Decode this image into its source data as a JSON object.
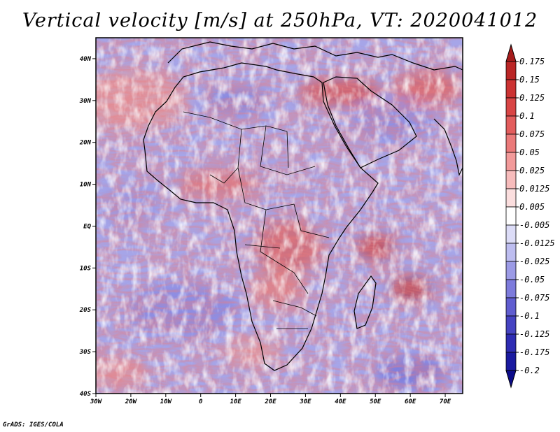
{
  "title": "Vertical velocity [m/s] at 250hPa, VT: 2020041012",
  "credit": "GrADS: IGES/COLA",
  "colors": {
    "positive": "#d23a3a",
    "negative": "#4a48c8",
    "background": "#ffffff",
    "coastline": "#000000"
  },
  "chart_data": {
    "type": "heatmap",
    "variable": "Vertical velocity",
    "units": "m/s",
    "level": "250hPa",
    "valid_time": "2020041012",
    "region": "Africa",
    "lon_range": [
      -30,
      75
    ],
    "lat_range": [
      -40,
      45
    ],
    "x_ticks": [
      "30W",
      "20W",
      "10W",
      "0",
      "10E",
      "20E",
      "30E",
      "40E",
      "50E",
      "60E",
      "70E"
    ],
    "x_tick_values": [
      -30,
      -20,
      -10,
      0,
      10,
      20,
      30,
      40,
      50,
      60,
      70
    ],
    "y_ticks": [
      "40N",
      "30N",
      "20N",
      "10N",
      "EQ",
      "10S",
      "20S",
      "30S",
      "40S"
    ],
    "y_tick_values": [
      40,
      30,
      20,
      10,
      0,
      -10,
      -20,
      -30,
      -40
    ],
    "colorbar": {
      "labels": [
        "0.175",
        "0.15",
        "0.125",
        "0.1",
        "0.075",
        "0.05",
        "0.025",
        "0.0125",
        "0.005",
        "-0.005",
        "-0.0125",
        "-0.025",
        "-0.05",
        "-0.075",
        "-0.1",
        "-0.125",
        "-0.175",
        "-0.2"
      ],
      "colors": [
        "#a51c1c",
        "#bb2626",
        "#cc3333",
        "#d94545",
        "#e35d5d",
        "#eb7a7a",
        "#f29a9a",
        "#f7bcbc",
        "#fbdede",
        "#ffffff",
        "#dcdcf7",
        "#bdbdf0",
        "#9c9be6",
        "#7d7bdc",
        "#605dd0",
        "#4543c2",
        "#2e2cb3",
        "#1a1aa0",
        "#0c0c8a"
      ]
    }
  }
}
